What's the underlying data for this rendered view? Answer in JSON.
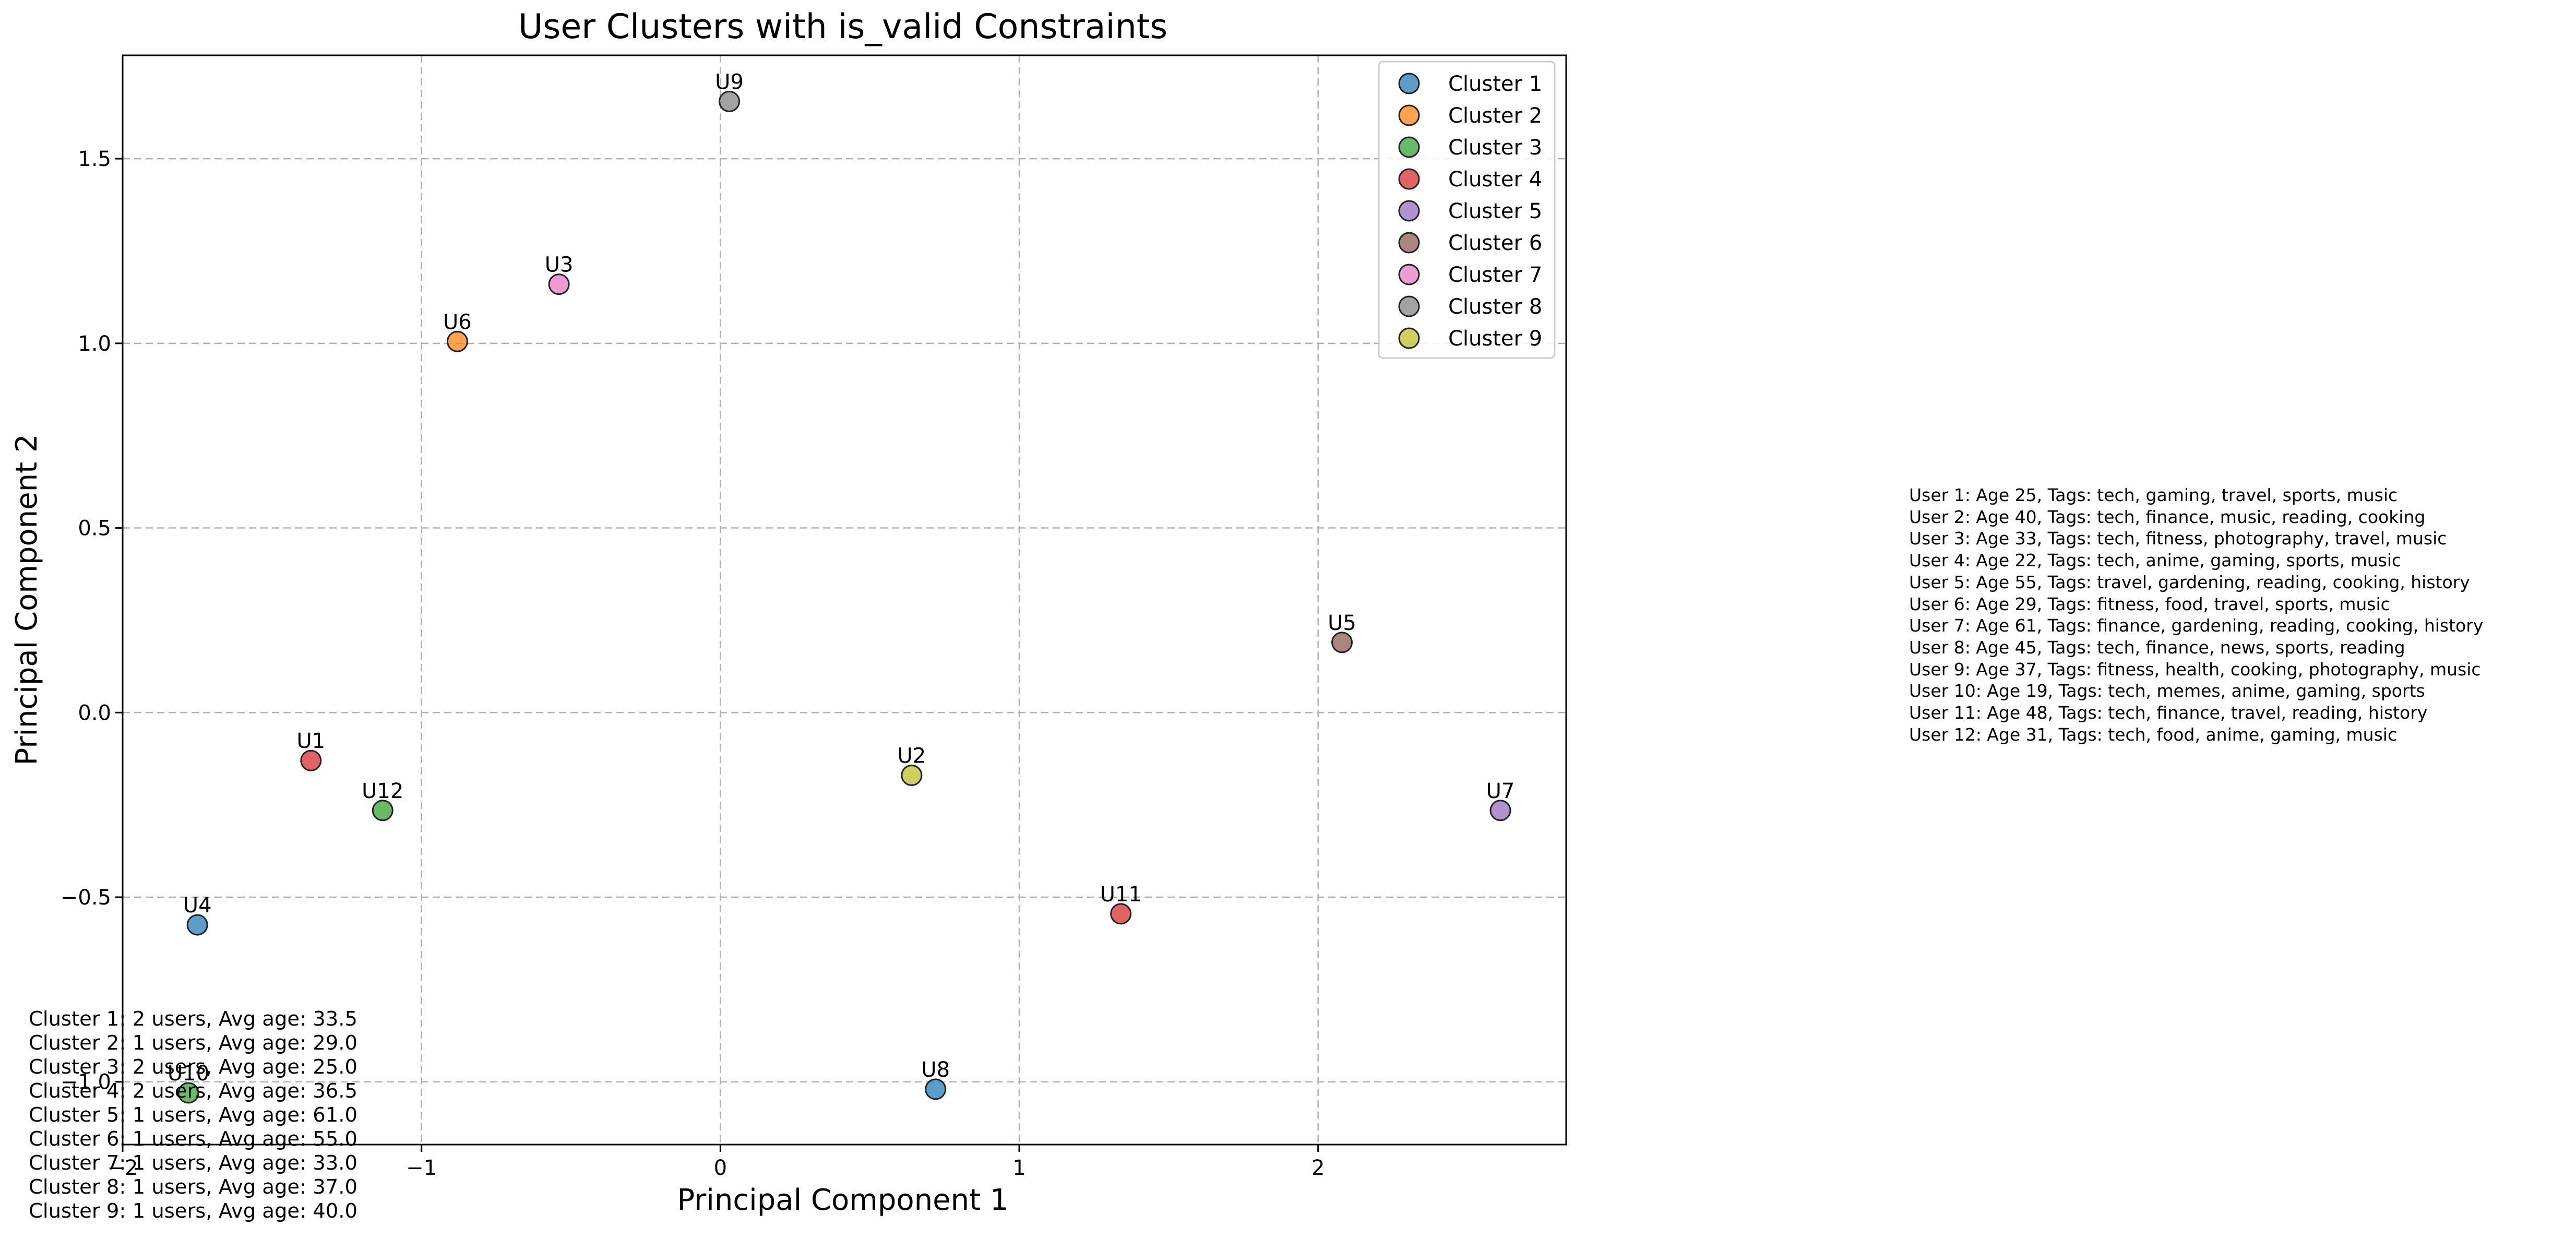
{
  "colors": {
    "cluster_palette": [
      "#1f77b4",
      "#ff7f0e",
      "#2ca02c",
      "#d62728",
      "#9467bd",
      "#8c564b",
      "#e377c2",
      "#7f7f7f",
      "#bcbd22"
    ],
    "grid": "#b0b0b0",
    "marker_edge": "#222222"
  },
  "chart_data": {
    "type": "scatter",
    "title": "User Clusters with is_valid Constraints",
    "xlabel": "Principal Component 1",
    "ylabel": "Principal Component 2",
    "xlim": [
      -2.0,
      2.83
    ],
    "ylim": [
      -1.17,
      1.78
    ],
    "x_ticks": [
      -2,
      -1,
      0,
      1,
      2
    ],
    "x_tick_labels": [
      "−2",
      "−1",
      "0",
      "1",
      "2"
    ],
    "y_ticks": [
      -1.0,
      -0.5,
      0.0,
      0.5,
      1.0,
      1.5
    ],
    "y_tick_labels": [
      "−1.0",
      "−0.5",
      "0.0",
      "0.5",
      "1.0",
      "1.5"
    ],
    "grid": true,
    "legend_position": "top-right",
    "legend": [
      "Cluster 1",
      "Cluster 2",
      "Cluster 3",
      "Cluster 4",
      "Cluster 5",
      "Cluster 6",
      "Cluster 7",
      "Cluster 8",
      "Cluster 9"
    ],
    "points": [
      {
        "label": "U1",
        "x": -1.37,
        "y": -0.13,
        "cluster": 4
      },
      {
        "label": "U2",
        "x": 0.64,
        "y": -0.17,
        "cluster": 9
      },
      {
        "label": "U3",
        "x": -0.54,
        "y": 1.16,
        "cluster": 7
      },
      {
        "label": "U4",
        "x": -1.75,
        "y": -0.575,
        "cluster": 1
      },
      {
        "label": "U5",
        "x": 2.08,
        "y": 0.19,
        "cluster": 6
      },
      {
        "label": "U6",
        "x": -0.88,
        "y": 1.005,
        "cluster": 2
      },
      {
        "label": "U7",
        "x": 2.61,
        "y": -0.265,
        "cluster": 5
      },
      {
        "label": "U8",
        "x": 0.72,
        "y": -1.02,
        "cluster": 1
      },
      {
        "label": "U9",
        "x": 0.03,
        "y": 1.655,
        "cluster": 8
      },
      {
        "label": "U10",
        "x": -1.78,
        "y": -1.03,
        "cluster": 3
      },
      {
        "label": "U11",
        "x": 1.34,
        "y": -0.545,
        "cluster": 4
      },
      {
        "label": "U12",
        "x": -1.13,
        "y": -0.265,
        "cluster": 3
      }
    ]
  },
  "user_info": [
    "User 1: Age 25, Tags: tech, gaming, travel, sports, music",
    "User 2: Age 40, Tags: tech, finance, music, reading, cooking",
    "User 3: Age 33, Tags: tech, fitness, photography, travel, music",
    "User 4: Age 22, Tags: tech, anime, gaming, sports, music",
    "User 5: Age 55, Tags: travel, gardening, reading, cooking, history",
    "User 6: Age 29, Tags: fitness, food, travel, sports, music",
    "User 7: Age 61, Tags: finance, gardening, reading, cooking, history",
    "User 8: Age 45, Tags: tech, finance, news, sports, reading",
    "User 9: Age 37, Tags: fitness, health, cooking, photography, music",
    "User 10: Age 19, Tags: tech, memes, anime, gaming, sports",
    "User 11: Age 48, Tags: tech, finance, travel, reading, history",
    "User 12: Age 31, Tags: tech, food, anime, gaming, music"
  ],
  "cluster_summary": [
    "Cluster 1: 2 users, Avg age: 33.5",
    "Cluster 2: 1 users, Avg age: 29.0",
    "Cluster 3: 2 users, Avg age: 25.0",
    "Cluster 4: 2 users, Avg age: 36.5",
    "Cluster 5: 1 users, Avg age: 61.0",
    "Cluster 6: 1 users, Avg age: 55.0",
    "Cluster 7: 1 users, Avg age: 33.0",
    "Cluster 8: 1 users, Avg age: 37.0",
    "Cluster 9: 1 users, Avg age: 40.0"
  ]
}
